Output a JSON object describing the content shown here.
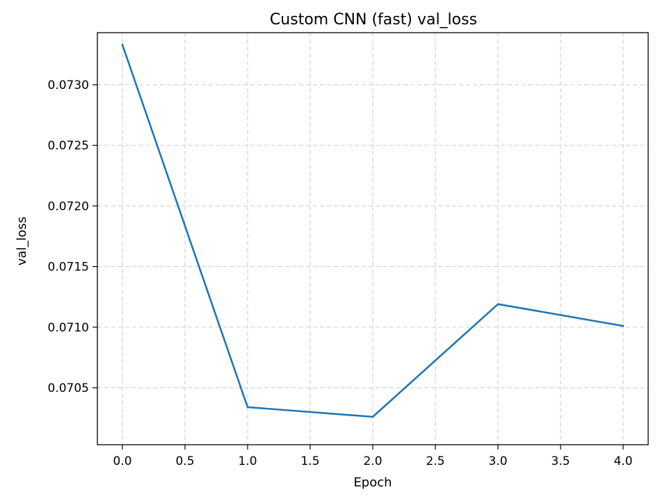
{
  "chart_data": {
    "type": "line",
    "title": "Custom CNN (fast) val_loss",
    "xlabel": "Epoch",
    "ylabel": "val_loss",
    "xlim": [
      -0.2,
      4.2
    ],
    "ylim": [
      0.07003,
      0.07343
    ],
    "xticks": [
      0.0,
      0.5,
      1.0,
      1.5,
      2.0,
      2.5,
      3.0,
      3.5,
      4.0
    ],
    "xtick_labels": [
      "0.0",
      "0.5",
      "1.0",
      "1.5",
      "2.0",
      "2.5",
      "3.0",
      "3.5",
      "4.0"
    ],
    "yticks": [
      0.0705,
      0.071,
      0.0715,
      0.072,
      0.0725,
      0.073
    ],
    "ytick_labels": [
      "0.0705",
      "0.0710",
      "0.0715",
      "0.0720",
      "0.0725",
      "0.0730"
    ],
    "grid": true,
    "grid_style": "dashed",
    "x": [
      0,
      1,
      2,
      3,
      4
    ],
    "series": [
      {
        "values": [
          0.07333,
          0.07034,
          0.07026,
          0.07119,
          0.07101
        ],
        "color": "#1f77b4"
      }
    ]
  }
}
